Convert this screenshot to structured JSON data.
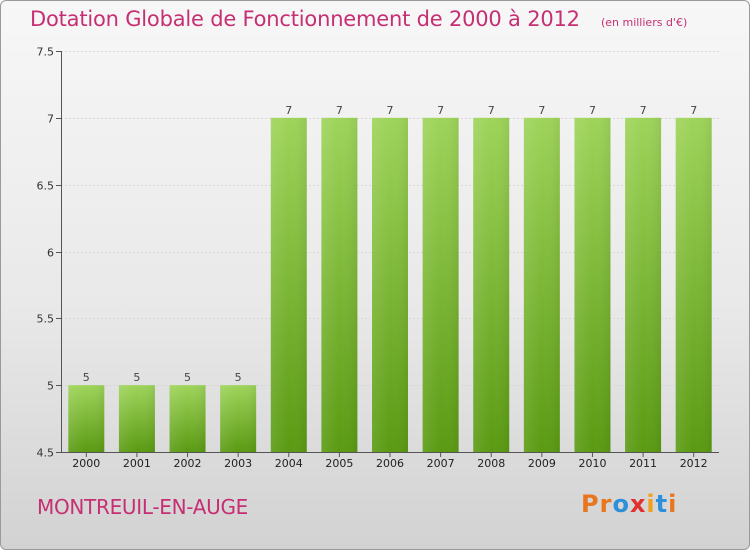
{
  "header": {
    "title": "Dotation Globale de Fonctionnement de 2000 à 2012",
    "unit": "(en milliers d'€)"
  },
  "footer": {
    "commune": "MONTREUIL-EN-AUGE",
    "logo_letters": [
      "P",
      "r",
      "o",
      "x",
      "i",
      "t",
      "i"
    ]
  },
  "colors": {
    "title": "#c62f73",
    "bar_top": "#9ed45a",
    "bar_bottom": "#5a9a12",
    "logo": [
      "#e8761f",
      "#e8761f",
      "#2f8fd8",
      "#e03030",
      "#f0a020",
      "#2f8fd8",
      "#e8761f"
    ]
  },
  "chart_data": {
    "type": "bar",
    "title": "Dotation Globale de Fonctionnement de 2000 à 2012",
    "unit": "(en milliers d'€)",
    "xlabel": "",
    "ylabel": "",
    "categories": [
      "2000",
      "2001",
      "2002",
      "2003",
      "2004",
      "2005",
      "2006",
      "2007",
      "2008",
      "2009",
      "2010",
      "2011",
      "2012"
    ],
    "values": [
      5,
      5,
      5,
      5,
      7,
      7,
      7,
      7,
      7,
      7,
      7,
      7,
      7
    ],
    "data_labels": [
      "5",
      "5",
      "5",
      "5",
      "7",
      "7",
      "7",
      "7",
      "7",
      "7",
      "7",
      "7",
      "7"
    ],
    "ylim": [
      4.5,
      7.5
    ],
    "yticks": [
      4.5,
      5,
      5.5,
      6,
      6.5,
      7,
      7.5
    ],
    "ytick_labels": [
      "4.5",
      "5",
      "5.5",
      "6",
      "6.5",
      "7",
      "7.5"
    ],
    "grid": true
  }
}
